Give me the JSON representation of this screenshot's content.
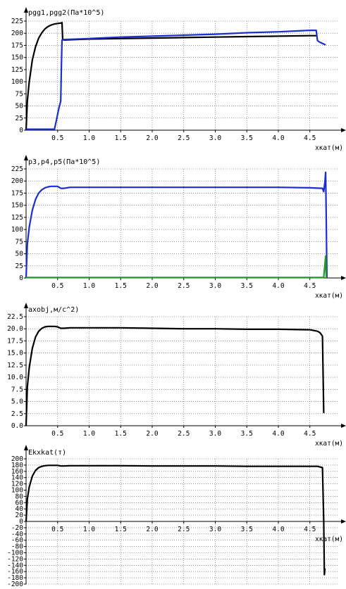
{
  "chart_data": [
    {
      "type": "line",
      "title": "pgg1,pgg2(Па*10^5)",
      "xlabel": "хкат(м)",
      "xlim": [
        0,
        4.95
      ],
      "ylim": [
        0,
        225
      ],
      "x_ticks": [
        0.5,
        1.0,
        1.5,
        2.0,
        2.5,
        3.0,
        3.5,
        4.0,
        4.5
      ],
      "y_ticks": [
        0,
        25,
        50,
        75,
        100,
        125,
        150,
        175,
        200,
        225
      ],
      "grid": true,
      "series": [
        {
          "color": "#000000",
          "x": [
            0,
            0.02,
            0.05,
            0.1,
            0.15,
            0.2,
            0.25,
            0.3,
            0.35,
            0.4,
            0.45,
            0.5,
            0.55,
            0.57,
            0.58,
            0.6,
            0.8,
            1.0,
            1.5,
            2.0,
            2.5,
            3.0,
            3.5,
            4.0,
            4.5,
            4.62
          ],
          "y": [
            0,
            60,
            100,
            145,
            172,
            190,
            201,
            209,
            214,
            217,
            219,
            220,
            221,
            222,
            188,
            186,
            187,
            188,
            189,
            190,
            191,
            192,
            193,
            194,
            195,
            195
          ]
        },
        {
          "color": "#1a2fd0",
          "x": [
            0,
            0.45,
            0.48,
            0.52,
            0.55,
            0.56,
            0.57,
            0.6,
            1.0,
            1.5,
            2.0,
            2.5,
            3.0,
            3.5,
            4.0,
            4.5,
            4.6,
            4.62,
            4.65,
            4.7,
            4.75
          ],
          "y": [
            2,
            2,
            20,
            45,
            60,
            130,
            186,
            187,
            189,
            192,
            194,
            196,
            198,
            201,
            203,
            206,
            206,
            185,
            182,
            179,
            176
          ]
        }
      ]
    },
    {
      "type": "line",
      "title": "p3,p4,p5(Па*10^5)",
      "xlabel": "хкат(м)",
      "xlim": [
        0,
        4.95
      ],
      "ylim": [
        0,
        225
      ],
      "x_ticks": [
        0.5,
        1.0,
        1.5,
        2.0,
        2.5,
        3.0,
        3.5,
        4.0,
        4.5
      ],
      "y_ticks": [
        0,
        25,
        50,
        75,
        100,
        125,
        150,
        175,
        200,
        225
      ],
      "grid": true,
      "series": [
        {
          "color": "#1a2fd0",
          "x": [
            0,
            0.02,
            0.05,
            0.1,
            0.15,
            0.2,
            0.25,
            0.3,
            0.35,
            0.4,
            0.45,
            0.5,
            0.55,
            0.6,
            0.65,
            0.7,
            1.0,
            1.5,
            2.0,
            2.5,
            3.0,
            3.5,
            4.0,
            4.5,
            4.7,
            4.72,
            4.74,
            4.75,
            4.76,
            4.77
          ],
          "y": [
            0,
            70,
            105,
            140,
            162,
            175,
            182,
            186,
            188,
            189,
            189,
            189,
            185,
            185,
            186,
            187,
            187,
            187,
            187,
            187,
            187,
            187,
            187,
            186,
            185,
            178,
            200,
            218,
            120,
            0
          ]
        },
        {
          "color": "#1f9a2a",
          "x": [
            0,
            4.72,
            4.74,
            4.75,
            4.76
          ],
          "y": [
            1,
            1,
            30,
            45,
            0
          ]
        }
      ]
    },
    {
      "type": "line",
      "title": "axobj,м/с^2)",
      "xlabel": "хкат(м)",
      "xlim": [
        0,
        4.95
      ],
      "ylim": [
        0,
        22.5
      ],
      "x_ticks": [
        0.5,
        1.0,
        1.5,
        2.0,
        2.5,
        3.0,
        3.5,
        4.0,
        4.5
      ],
      "y_ticks": [
        0.0,
        2.5,
        5.0,
        7.5,
        10.0,
        12.5,
        15.0,
        17.5,
        20.0,
        22.5
      ],
      "grid": true,
      "series": [
        {
          "color": "#000000",
          "x": [
            0,
            0.02,
            0.05,
            0.1,
            0.15,
            0.2,
            0.25,
            0.3,
            0.35,
            0.4,
            0.45,
            0.5,
            0.55,
            0.6,
            0.7,
            1.0,
            1.5,
            2.0,
            2.5,
            3.0,
            3.5,
            4.0,
            4.5,
            4.62,
            4.66,
            4.7,
            4.72
          ],
          "y": [
            0,
            8,
            12,
            16,
            18.3,
            19.5,
            20.1,
            20.4,
            20.5,
            20.5,
            20.5,
            20.4,
            20.1,
            20.1,
            20.2,
            20.2,
            20.2,
            20.1,
            20.0,
            20.0,
            19.9,
            19.9,
            19.8,
            19.5,
            19.2,
            18.5,
            2.6
          ]
        }
      ]
    },
    {
      "type": "line",
      "title": "Ekxkat(т)",
      "xlabel": "хкат(м)",
      "xlim": [
        0,
        4.95
      ],
      "ylim": [
        -200,
        200
      ],
      "x_ticks": [
        0.5,
        1.0,
        1.5,
        2.0,
        2.5,
        3.0,
        3.5,
        4.0,
        4.5
      ],
      "y_ticks": [
        -200,
        -180,
        -160,
        -140,
        -120,
        -100,
        -80,
        -60,
        -40,
        -20,
        0,
        20,
        40,
        60,
        80,
        100,
        120,
        140,
        160,
        180,
        200
      ],
      "grid": true,
      "series": [
        {
          "color": "#000000",
          "x": [
            0,
            0.02,
            0.05,
            0.1,
            0.15,
            0.2,
            0.25,
            0.3,
            0.35,
            0.4,
            0.45,
            0.5,
            0.55,
            0.6,
            0.7,
            1.0,
            1.5,
            2.0,
            2.5,
            3.0,
            3.5,
            4.0,
            4.5,
            4.62,
            4.66,
            4.7,
            4.72,
            4.73,
            4.74
          ],
          "y": [
            0,
            72,
            110,
            145,
            163,
            172,
            176,
            178,
            179,
            179,
            179,
            179,
            177,
            177,
            178,
            178,
            178,
            177,
            177,
            177,
            176,
            176,
            176,
            176,
            174,
            172,
            0,
            -170,
            -150
          ]
        }
      ]
    }
  ]
}
